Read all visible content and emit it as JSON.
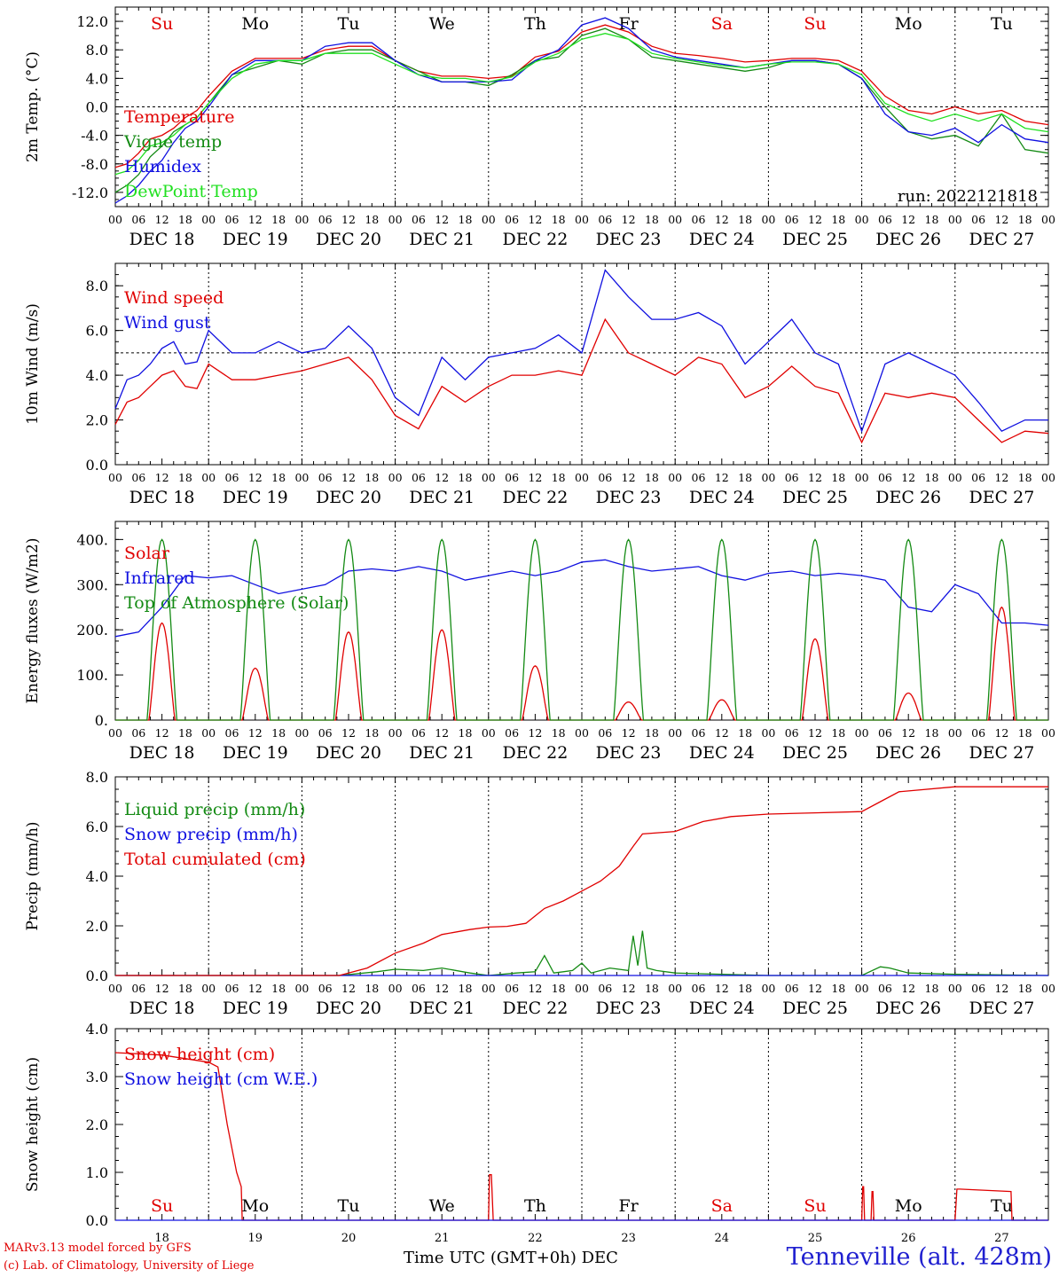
{
  "colors": {
    "red": "#e00000",
    "green": "#138a13",
    "blue": "#1010e0",
    "lightgreen": "#20e020"
  },
  "footer": {
    "credit_line1": "MARv3.13 model forced by GFS",
    "credit_line2": "(c) Lab. of Climatology, University of Liege",
    "time_axis": "Time UTC (GMT+0h)",
    "month": "DEC",
    "station": "Tenneville (alt. 428m)"
  },
  "chart_data": [
    {
      "type": "line",
      "ylabel": "2m Temp. (°C)",
      "ylim": [
        -14,
        14
      ],
      "y_ticks": [
        "12.0",
        "8.0",
        "4.0",
        "0.0",
        "-4.0",
        "-8.0",
        "-12.0"
      ],
      "y_tick_values": [
        12,
        8,
        4,
        0,
        -4,
        -8,
        -12
      ],
      "reference_line": 0,
      "x_hour_ticks": [
        "00",
        "06",
        "12",
        "18"
      ],
      "x_day_labels": [
        "DEC 18",
        "DEC 19",
        "DEC 20",
        "DEC 21",
        "DEC 22",
        "DEC 23",
        "DEC 24",
        "DEC 25",
        "DEC 26",
        "DEC 27"
      ],
      "weekday_labels": [
        "Su",
        "Mo",
        "Tu",
        "We",
        "Th",
        "Fr",
        "Sa",
        "Su",
        "Mo",
        "Tu"
      ],
      "weekday_colors": [
        "red",
        "black",
        "black",
        "black",
        "black",
        "black",
        "red",
        "red",
        "black",
        "black"
      ],
      "annotation": "run: 2022121818",
      "x": [
        0,
        0.125,
        0.25,
        0.375,
        0.5,
        0.625,
        0.75,
        0.875,
        1,
        1.25,
        1.5,
        1.75,
        2,
        2.25,
        2.5,
        2.75,
        3,
        3.25,
        3.5,
        3.75,
        4,
        4.25,
        4.5,
        4.75,
        5,
        5.25,
        5.5,
        5.75,
        6,
        6.25,
        6.5,
        6.75,
        7,
        7.25,
        7.5,
        7.75,
        8,
        8.25,
        8.5,
        8.75,
        9,
        9.25,
        9.5,
        9.75,
        10
      ],
      "series": [
        {
          "name": "Temperature",
          "color": "red",
          "values": [
            -8.5,
            -8.0,
            -6.5,
            -4.5,
            -4.0,
            -3.0,
            -1.5,
            -0.5,
            1.5,
            5.0,
            6.8,
            6.8,
            6.8,
            8.0,
            8.5,
            8.5,
            6.5,
            5.0,
            4.3,
            4.3,
            4.0,
            4.3,
            7.0,
            7.8,
            10.5,
            11.5,
            10.5,
            8.5,
            7.5,
            7.2,
            6.8,
            6.3,
            6.5,
            6.8,
            6.8,
            6.5,
            5.0,
            1.5,
            -0.5,
            -1.0,
            0,
            -1.0,
            -0.5,
            -2.0,
            -2.5
          ]
        },
        {
          "name": "Vigne temp",
          "color": "green",
          "values": [
            -12.0,
            -11.0,
            -9.5,
            -7.0,
            -5.5,
            -3.5,
            -2.5,
            -1.5,
            0.5,
            4.5,
            5.5,
            6.5,
            6.0,
            7.5,
            8.0,
            8.0,
            6.5,
            5.0,
            3.5,
            3.5,
            3.0,
            4.5,
            6.5,
            7.0,
            10.0,
            11.0,
            9.5,
            7.0,
            6.5,
            6.0,
            5.5,
            5.0,
            5.5,
            6.5,
            6.5,
            6.0,
            4.0,
            0,
            -3.5,
            -4.5,
            -4.0,
            -5.5,
            -1.0,
            -6.0,
            -6.5
          ]
        },
        {
          "name": "Humidex",
          "color": "blue",
          "values": [
            -13.5,
            -12.5,
            -11.0,
            -9.0,
            -7.5,
            -5.0,
            -3.0,
            -2.0,
            0,
            4.5,
            6.5,
            6.5,
            6.5,
            8.5,
            9.0,
            9.0,
            6.5,
            4.5,
            3.5,
            3.5,
            3.5,
            3.8,
            6.5,
            8.0,
            11.5,
            12.5,
            11.0,
            8.0,
            7.0,
            6.5,
            6.0,
            5.5,
            6.0,
            6.5,
            6.5,
            6.0,
            4.0,
            -1.0,
            -3.5,
            -4.0,
            -3.0,
            -5.0,
            -2.5,
            -4.5,
            -5.0
          ]
        },
        {
          "name": "DewPoint Temp",
          "color": "lightgreen",
          "values": [
            -9.5,
            -9.0,
            -7.5,
            -5.5,
            -5.0,
            -4.0,
            -2.5,
            -1.5,
            0.5,
            4.0,
            6.0,
            6.5,
            6.5,
            7.5,
            7.5,
            7.5,
            6.0,
            4.5,
            4.0,
            4.0,
            3.5,
            4.2,
            6.3,
            7.5,
            9.5,
            10.3,
            9.5,
            7.5,
            6.8,
            6.3,
            5.8,
            5.5,
            6.0,
            6.3,
            6.3,
            6.0,
            4.5,
            0.5,
            -1.0,
            -2.0,
            -1.0,
            -2.0,
            -1.0,
            -3.0,
            -3.5
          ]
        }
      ]
    },
    {
      "type": "line",
      "ylabel": "10m Wind (m/s)",
      "ylim": [
        0,
        9
      ],
      "y_ticks": [
        "8.0",
        "6.0",
        "4.0",
        "2.0",
        "0.0"
      ],
      "y_tick_values": [
        8,
        6,
        4,
        2,
        0
      ],
      "reference_line": 5,
      "x_hour_ticks": [
        "00",
        "06",
        "12",
        "18"
      ],
      "x_day_labels": [
        "DEC 18",
        "DEC 19",
        "DEC 20",
        "DEC 21",
        "DEC 22",
        "DEC 23",
        "DEC 24",
        "DEC 25",
        "DEC 26",
        "DEC 27"
      ],
      "x": [
        0,
        0.125,
        0.25,
        0.375,
        0.5,
        0.625,
        0.75,
        0.875,
        1,
        1.25,
        1.5,
        1.75,
        2,
        2.25,
        2.5,
        2.75,
        3,
        3.25,
        3.5,
        3.75,
        4,
        4.25,
        4.5,
        4.75,
        5,
        5.25,
        5.5,
        5.75,
        6,
        6.25,
        6.5,
        6.75,
        7,
        7.25,
        7.5,
        7.75,
        8,
        8.25,
        8.5,
        8.75,
        9,
        9.25,
        9.5,
        9.75,
        10
      ],
      "series": [
        {
          "name": "Wind speed",
          "color": "red",
          "values": [
            1.8,
            2.8,
            3.0,
            3.5,
            4.0,
            4.2,
            3.5,
            3.4,
            4.5,
            3.8,
            3.8,
            4.0,
            4.2,
            4.5,
            4.8,
            3.8,
            2.2,
            1.6,
            3.5,
            2.8,
            3.5,
            4.0,
            4.0,
            4.2,
            4.0,
            6.5,
            5.0,
            4.5,
            4.0,
            4.8,
            4.5,
            3.0,
            3.5,
            4.4,
            3.5,
            3.2,
            1.0,
            3.2,
            3.0,
            3.2,
            3.0,
            2.0,
            1.0,
            1.5,
            1.4
          ]
        },
        {
          "name": "Wind gust",
          "color": "blue",
          "values": [
            2.5,
            3.8,
            4.0,
            4.5,
            5.2,
            5.5,
            4.5,
            4.6,
            6.0,
            5.0,
            5.0,
            5.5,
            5.0,
            5.2,
            6.2,
            5.2,
            3.0,
            2.2,
            4.8,
            3.8,
            4.8,
            5.0,
            5.2,
            5.8,
            5.0,
            8.7,
            7.5,
            6.5,
            6.5,
            6.8,
            6.2,
            4.5,
            5.5,
            6.5,
            5.0,
            4.5,
            1.5,
            4.5,
            5.0,
            4.5,
            4.0,
            2.8,
            1.5,
            2.0,
            2.0
          ]
        }
      ]
    },
    {
      "type": "line",
      "ylabel": "Energy fluxes (W/m2)",
      "ylim": [
        0,
        440
      ],
      "y_ticks": [
        "400.",
        "300.",
        "200.",
        "100.",
        "0."
      ],
      "y_tick_values": [
        400,
        300,
        200,
        100,
        0
      ],
      "x_hour_ticks": [
        "00",
        "06",
        "12",
        "18"
      ],
      "x_day_labels": [
        "DEC 18",
        "DEC 19",
        "DEC 20",
        "DEC 21",
        "DEC 22",
        "DEC 23",
        "DEC 24",
        "DEC 25",
        "DEC 26",
        "DEC 27"
      ],
      "series": [
        {
          "name": "Solar",
          "color": "red",
          "peaks": [
            215,
            115,
            195,
            200,
            120,
            40,
            45,
            180,
            60,
            250
          ]
        },
        {
          "name": "Infrared",
          "color": "blue",
          "x": [
            0,
            0.25,
            0.5,
            0.75,
            1,
            1.25,
            1.5,
            1.75,
            2,
            2.25,
            2.5,
            2.75,
            3,
            3.25,
            3.5,
            3.75,
            4,
            4.25,
            4.5,
            4.75,
            5,
            5.25,
            5.5,
            5.75,
            6,
            6.25,
            6.5,
            6.75,
            7,
            7.25,
            7.5,
            7.75,
            8,
            8.25,
            8.5,
            8.75,
            9,
            9.25,
            9.5,
            9.75,
            10
          ],
          "values": [
            185,
            195,
            250,
            320,
            315,
            320,
            300,
            280,
            290,
            300,
            330,
            335,
            330,
            340,
            330,
            310,
            320,
            330,
            320,
            330,
            350,
            355,
            340,
            330,
            335,
            340,
            320,
            310,
            325,
            330,
            320,
            325,
            320,
            310,
            250,
            240,
            300,
            280,
            215,
            215,
            210
          ]
        },
        {
          "name": "Top of Atmosphere (Solar)",
          "color": "green",
          "peaks": [
            400,
            400,
            400,
            400,
            400,
            400,
            400,
            400,
            400,
            400
          ]
        }
      ]
    },
    {
      "type": "line",
      "ylabel": "Precip (mm/h)",
      "ylim": [
        0,
        8
      ],
      "y_ticks": [
        "8.0",
        "6.0",
        "4.0",
        "2.0",
        "0.0"
      ],
      "y_tick_values": [
        8,
        6,
        4,
        2,
        0
      ],
      "x_hour_ticks": [
        "00",
        "06",
        "12",
        "18"
      ],
      "x_day_labels": [
        "DEC 18",
        "DEC 19",
        "DEC 20",
        "DEC 21",
        "DEC 22",
        "DEC 23",
        "DEC 24",
        "DEC 25",
        "DEC 26",
        "DEC 27"
      ],
      "series": [
        {
          "name": "Liquid precip (mm/h)",
          "color": "green",
          "x": [
            0,
            2.4,
            2.8,
            3.0,
            3.3,
            3.5,
            3.8,
            4.0,
            4.3,
            4.5,
            4.6,
            4.7,
            4.9,
            5.0,
            5.1,
            5.3,
            5.5,
            5.55,
            5.6,
            5.65,
            5.7,
            5.8,
            6.0,
            6.5,
            7.0,
            7.5,
            8.0,
            8.2,
            8.3,
            8.5,
            9.0,
            10.0
          ],
          "values": [
            0,
            0,
            0.15,
            0.25,
            0.2,
            0.3,
            0.1,
            0,
            0.1,
            0.15,
            0.8,
            0.1,
            0.2,
            0.5,
            0.1,
            0.3,
            0.2,
            1.6,
            0.4,
            1.8,
            0.3,
            0.2,
            0.1,
            0.05,
            0,
            0,
            0,
            0.35,
            0.3,
            0.1,
            0.05,
            0
          ]
        },
        {
          "name": "Snow precip (mm/h)",
          "color": "blue",
          "x": [
            0,
            10
          ],
          "values": [
            0,
            0
          ]
        },
        {
          "name": "Total cumulated (cm)",
          "color": "red",
          "x": [
            0,
            2.4,
            2.7,
            3.0,
            3.3,
            3.5,
            3.8,
            4.0,
            4.2,
            4.4,
            4.6,
            4.8,
            5.0,
            5.2,
            5.4,
            5.55,
            5.65,
            6.0,
            6.3,
            6.6,
            7.0,
            7.5,
            8.0,
            8.2,
            8.4,
            9.0,
            10.0
          ],
          "values": [
            0,
            0,
            0.3,
            0.9,
            1.3,
            1.65,
            1.85,
            1.95,
            1.98,
            2.1,
            2.7,
            3.0,
            3.4,
            3.8,
            4.4,
            5.2,
            5.7,
            5.8,
            6.2,
            6.4,
            6.5,
            6.55,
            6.6,
            7.0,
            7.4,
            7.6,
            7.6
          ]
        }
      ]
    },
    {
      "type": "line",
      "ylabel": "Snow height (cm)",
      "ylim": [
        0,
        4
      ],
      "y_ticks": [
        "4.0",
        "3.0",
        "2.0",
        "1.0",
        "0.0"
      ],
      "y_tick_values": [
        4,
        3,
        2,
        1,
        0
      ],
      "x_tick_labels": [
        "18",
        "19",
        "20",
        "21",
        "22",
        "23",
        "24",
        "25",
        "26",
        "27"
      ],
      "weekday_labels": [
        "Su",
        "Mo",
        "Tu",
        "We",
        "Th",
        "Fr",
        "Sa",
        "Su",
        "Mo",
        "Tu"
      ],
      "weekday_colors": [
        "red",
        "black",
        "black",
        "black",
        "black",
        "black",
        "red",
        "red",
        "black",
        "black"
      ],
      "series": [
        {
          "name": "Snow height (cm)",
          "color": "red",
          "x": [
            0,
            0.5,
            1.0,
            1.1,
            1.2,
            1.3,
            1.35,
            1.36,
            4.0,
            4.01,
            4.03,
            4.05,
            4.06,
            8.0,
            8.01,
            8.02,
            8.03,
            8.1,
            8.11,
            8.12,
            8.13,
            9.0,
            9.02,
            9.05,
            9.6,
            9.61,
            10.0
          ],
          "values": [
            3.5,
            3.45,
            3.3,
            3.2,
            2.0,
            1.0,
            0.7,
            0,
            0,
            0.95,
            0.95,
            0,
            0,
            0,
            0.7,
            0.7,
            0,
            0,
            0.6,
            0.6,
            0,
            0,
            0.65,
            0.65,
            0.6,
            0,
            0
          ]
        },
        {
          "name": "Snow height (cm W.E.)",
          "color": "blue",
          "x": [
            0,
            10
          ],
          "values": [
            0,
            0
          ]
        }
      ]
    }
  ]
}
